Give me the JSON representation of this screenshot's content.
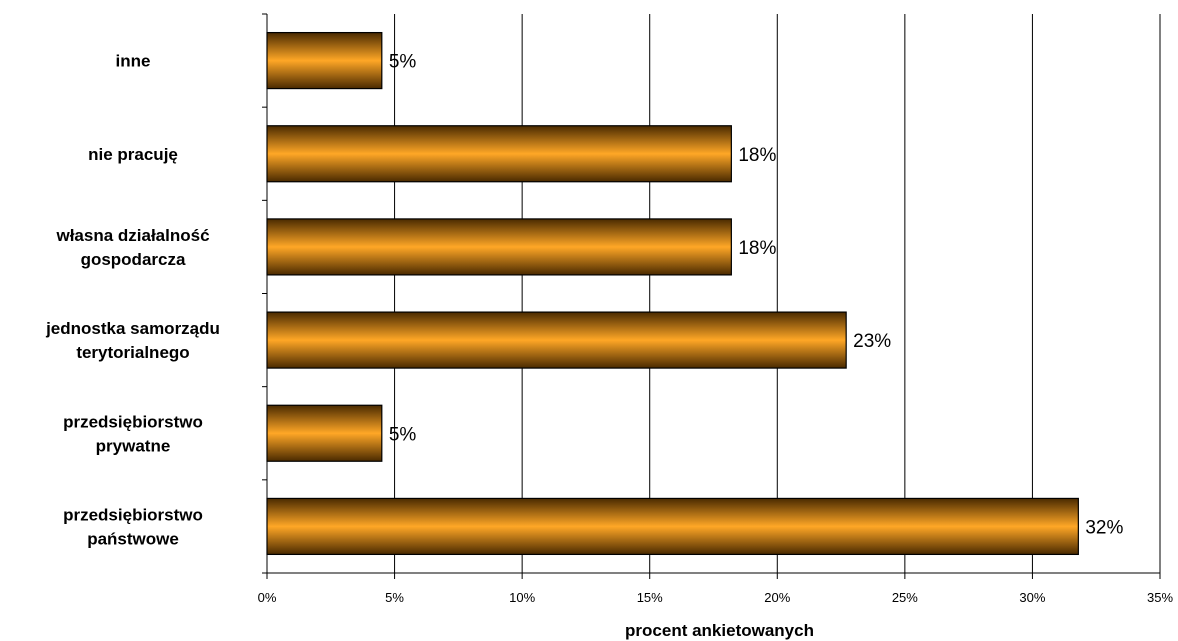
{
  "chart_data": {
    "type": "bar",
    "orientation": "horizontal",
    "categories": [
      [
        "przedsiębiorstwo",
        "państwowe"
      ],
      [
        "przedsiębiorstwo",
        "prywatne"
      ],
      [
        "jednostka samorządu",
        "terytorialnego"
      ],
      [
        "własna działalność",
        "gospodarcza"
      ],
      [
        "nie pracuję"
      ],
      [
        "inne"
      ]
    ],
    "values": [
      31.8,
      4.5,
      22.7,
      18.2,
      18.2,
      4.5
    ],
    "data_labels": [
      "32%",
      "5%",
      "23%",
      "18%",
      "18%",
      "5%"
    ],
    "xlim": [
      0,
      35
    ],
    "xticks": [
      0,
      5,
      10,
      15,
      20,
      25,
      30,
      35
    ],
    "xtick_labels": [
      "0%",
      "5%",
      "10%",
      "15%",
      "20%",
      "25%",
      "30%",
      "35%"
    ],
    "xlabel": "procent ankietowanych",
    "ylabel": "",
    "title": "",
    "grid": "vertical",
    "legend": "none",
    "colors": {
      "bar_edge": "#ff9a00",
      "bar_center": "#ffa726",
      "bar_dark": "#4a2a00",
      "outline": "#000000",
      "grid": "#000000"
    }
  }
}
